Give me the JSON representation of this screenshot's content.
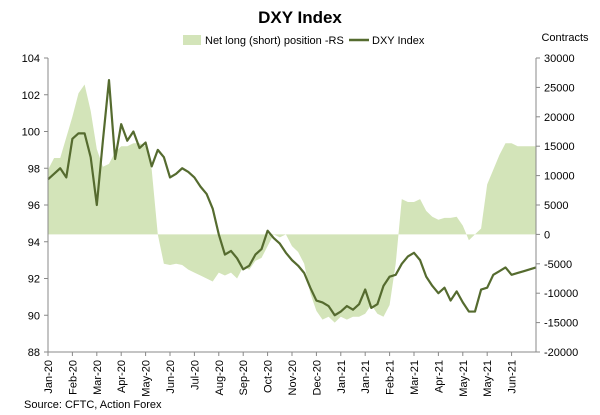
{
  "chart_data": {
    "type": "line",
    "title": "DXY Index",
    "right_axis_label": "Contracts",
    "source": "Source: CFTC, Action Forex",
    "legend": {
      "placement": "top-center",
      "entries": [
        "Net long (short) position -RS",
        "DXY Index"
      ]
    },
    "left_axis": {
      "ylim": [
        88,
        104
      ],
      "ticks": [
        "104",
        "102",
        "100",
        "98",
        "96",
        "94",
        "92",
        "90",
        "88"
      ]
    },
    "right_axis": {
      "ylim": [
        -20000,
        30000
      ],
      "ticks": [
        "30000",
        "25000",
        "20000",
        "15000",
        "10000",
        "5000",
        "0",
        "-5000",
        "-10000",
        "-15000",
        "-20000"
      ]
    },
    "x_tick_labels": [
      "Jan-20",
      "Feb-20",
      "Mar-20",
      "Apr-20",
      "May-20",
      "Jun-20",
      "Jul-20",
      "Aug-20",
      "Sep-20",
      "Oct-20",
      "Nov-20",
      "Dec-20",
      "Jan-21",
      "Jan-21",
      "Feb-21",
      "Mar-21",
      "Apr-21",
      "May-21",
      "May-21",
      "Jun-21"
    ],
    "x_tick_positions": [
      0,
      0.0833,
      0.1667,
      0.25,
      0.3333,
      0.4167,
      0.5,
      0.5833,
      0.6667,
      0.75,
      0.8333,
      0.9167,
      1.0,
      1.0833,
      1.1667,
      1.25,
      1.3333,
      1.4167,
      1.5,
      1.5833
    ],
    "x_range": [
      0,
      1.6667
    ],
    "grid": false,
    "colors": {
      "area": "#d3e4b9",
      "line": "#556b2f"
    },
    "series": [
      {
        "name": "Net long (short) position -RS",
        "type": "area",
        "axis": "right",
        "x": [
          0,
          0.0208,
          0.0417,
          0.0625,
          0.0833,
          0.1042,
          0.125,
          0.1458,
          0.1667,
          0.1875,
          0.2083,
          0.2292,
          0.25,
          0.2708,
          0.2917,
          0.3125,
          0.3333,
          0.3542,
          0.375,
          0.3958,
          0.4167,
          0.4375,
          0.4583,
          0.4792,
          0.5,
          0.5208,
          0.5417,
          0.5625,
          0.5833,
          0.6042,
          0.625,
          0.6458,
          0.6667,
          0.6875,
          0.7083,
          0.7292,
          0.75,
          0.7708,
          0.7917,
          0.8125,
          0.8333,
          0.8542,
          0.875,
          0.8958,
          0.9167,
          0.9375,
          0.9583,
          0.9792,
          1.0,
          1.0208,
          1.0417,
          1.0625,
          1.0833,
          1.1042,
          1.125,
          1.1458,
          1.1667,
          1.1875,
          1.2083,
          1.2292,
          1.25,
          1.2708,
          1.2917,
          1.3125,
          1.3333,
          1.3542,
          1.375,
          1.3958,
          1.4167,
          1.4375,
          1.4583,
          1.4792,
          1.5,
          1.5208,
          1.5417,
          1.5625,
          1.5833,
          1.6042,
          1.625,
          1.6458,
          1.6667
        ],
        "values": [
          11000,
          13000,
          13000,
          16500,
          20000,
          24000,
          25500,
          21000,
          14500,
          11500,
          12000,
          14000,
          15000,
          15000,
          15500,
          15500,
          15000,
          11000,
          0,
          -5000,
          -5200,
          -5000,
          -5200,
          -6000,
          -6500,
          -7000,
          -7500,
          -8000,
          -6500,
          -7000,
          -6500,
          -7500,
          -5500,
          -6000,
          -4500,
          -4000,
          -2000,
          0,
          -500,
          0,
          -2000,
          -3000,
          -5000,
          -10000,
          -13000,
          -14500,
          -14000,
          -15000,
          -14000,
          -14500,
          -14000,
          -14000,
          -13500,
          -12000,
          -13500,
          -14000,
          -12000,
          -5000,
          6000,
          5500,
          5500,
          6000,
          4000,
          3000,
          2500,
          2800,
          2800,
          3000,
          1500,
          -1000,
          0,
          1000,
          8500,
          11000,
          13500,
          15500,
          15500,
          15000,
          15000,
          15000,
          15000
        ]
      },
      {
        "name": "DXY Index",
        "type": "line",
        "axis": "left",
        "x": [
          0,
          0.0208,
          0.0417,
          0.0625,
          0.0833,
          0.1042,
          0.125,
          0.1458,
          0.1667,
          0.1875,
          0.2083,
          0.2292,
          0.25,
          0.2708,
          0.2917,
          0.3125,
          0.3333,
          0.3542,
          0.375,
          0.3958,
          0.4167,
          0.4375,
          0.4583,
          0.4792,
          0.5,
          0.5208,
          0.5417,
          0.5625,
          0.5833,
          0.6042,
          0.625,
          0.6458,
          0.6667,
          0.6875,
          0.7083,
          0.7292,
          0.75,
          0.7708,
          0.7917,
          0.8125,
          0.8333,
          0.8542,
          0.875,
          0.8958,
          0.9167,
          0.9375,
          0.9583,
          0.9792,
          1.0,
          1.0208,
          1.0417,
          1.0625,
          1.0833,
          1.1042,
          1.125,
          1.1458,
          1.1667,
          1.1875,
          1.2083,
          1.2292,
          1.25,
          1.2708,
          1.2917,
          1.3125,
          1.3333,
          1.3542,
          1.375,
          1.3958,
          1.4167,
          1.4375,
          1.4583,
          1.4792,
          1.5,
          1.5208,
          1.5417,
          1.5625,
          1.5833,
          1.6042,
          1.625,
          1.6458,
          1.6667
        ],
        "values": [
          97.4,
          97.7,
          98.0,
          97.5,
          99.6,
          99.9,
          99.9,
          98.6,
          96.0,
          99.5,
          102.8,
          98.5,
          100.4,
          99.5,
          100.0,
          99.1,
          99.4,
          98.1,
          99.0,
          98.6,
          97.5,
          97.7,
          98.0,
          97.8,
          97.5,
          97.0,
          96.6,
          95.8,
          94.4,
          93.3,
          93.5,
          93.1,
          92.5,
          92.7,
          93.3,
          93.6,
          94.6,
          94.2,
          93.9,
          93.4,
          93.0,
          92.7,
          92.3,
          91.5,
          90.8,
          90.7,
          90.5,
          90.0,
          90.2,
          90.5,
          90.3,
          90.6,
          91.4,
          90.4,
          90.6,
          91.6,
          92.1,
          92.2,
          92.8,
          93.2,
          93.4,
          93.0,
          92.1,
          91.6,
          91.2,
          91.5,
          90.8,
          91.3,
          90.7,
          90.2,
          90.2,
          91.4,
          91.5,
          92.2,
          92.4,
          92.6,
          92.2,
          92.3,
          92.4,
          92.5,
          92.6
        ]
      }
    ]
  }
}
